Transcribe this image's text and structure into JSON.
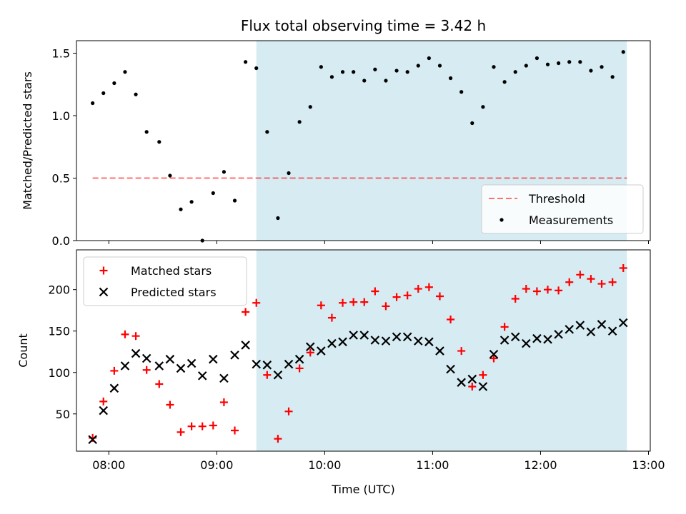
{
  "chart_data": [
    {
      "type": "scatter",
      "title": "Flux total observing time = 3.42 h",
      "xlabel": "",
      "ylabel": "Matched/Predicted stars",
      "x_type": "time",
      "xlim": [
        "07:42",
        "13:01"
      ],
      "ylim": [
        0,
        1.6
      ],
      "yticks": [
        0.0,
        0.5,
        1.0,
        1.5
      ],
      "ytick_labels": [
        "0.0",
        "0.5",
        "1.0",
        "1.5"
      ],
      "xticks": [
        "08:00",
        "09:00",
        "10:00",
        "11:00",
        "12:00",
        "13:00"
      ],
      "shaded_region": {
        "start": "09:22",
        "end": "12:48",
        "color": "#add8e6"
      },
      "legend_position": "lower-right",
      "lines": [
        {
          "name": "Threshold",
          "color": "#ff0000",
          "style": "dashed",
          "x": [
            "07:51",
            "12:48"
          ],
          "y": [
            0.5,
            0.5
          ]
        }
      ],
      "series": [
        {
          "name": "Measurements",
          "color": "#000000",
          "marker": "dot",
          "x": [
            "07:51",
            "07:57",
            "08:03",
            "08:09",
            "08:15",
            "08:21",
            "08:28",
            "08:34",
            "08:40",
            "08:46",
            "08:52",
            "08:58",
            "09:04",
            "09:10",
            "09:16",
            "09:22",
            "09:28",
            "09:34",
            "09:40",
            "09:46",
            "09:52",
            "09:58",
            "10:04",
            "10:10",
            "10:16",
            "10:22",
            "10:28",
            "10:34",
            "10:40",
            "10:46",
            "10:52",
            "10:58",
            "11:04",
            "11:10",
            "11:16",
            "11:22",
            "11:28",
            "11:34",
            "11:40",
            "11:46",
            "11:52",
            "11:58",
            "12:04",
            "12:10",
            "12:16",
            "12:22",
            "12:28",
            "12:34",
            "12:40",
            "12:46"
          ],
          "y": [
            1.1,
            1.18,
            1.26,
            1.35,
            1.17,
            0.87,
            0.79,
            0.52,
            0.25,
            0.31,
            0.0,
            0.38,
            0.55,
            0.32,
            1.43,
            1.38,
            0.87,
            0.18,
            0.54,
            0.95,
            1.07,
            1.39,
            1.31,
            1.35,
            1.35,
            1.28,
            1.37,
            1.28,
            1.36,
            1.35,
            1.4,
            1.46,
            1.4,
            1.3,
            1.19,
            0.94,
            1.07,
            1.39,
            1.27,
            1.35,
            1.4,
            1.46,
            1.41,
            1.42,
            1.43,
            1.43,
            1.36,
            1.39,
            1.31,
            1.51
          ]
        }
      ]
    },
    {
      "type": "scatter",
      "title": "",
      "xlabel": "Time (UTC)",
      "ylabel": "Count",
      "x_type": "time",
      "xlim": [
        "07:42",
        "13:01"
      ],
      "ylim": [
        5,
        248
      ],
      "yticks": [
        50,
        100,
        150,
        200
      ],
      "xticks": [
        "08:00",
        "09:00",
        "10:00",
        "11:00",
        "12:00",
        "13:00"
      ],
      "shaded_region": {
        "start": "09:22",
        "end": "12:48",
        "color": "#add8e6"
      },
      "legend_position": "upper-left",
      "series": [
        {
          "name": "Matched stars",
          "color": "#ff0000",
          "marker": "plus",
          "x": [
            "07:51",
            "07:57",
            "08:03",
            "08:09",
            "08:15",
            "08:21",
            "08:28",
            "08:34",
            "08:40",
            "08:46",
            "08:52",
            "08:58",
            "09:04",
            "09:10",
            "09:16",
            "09:22",
            "09:28",
            "09:34",
            "09:40",
            "09:46",
            "09:52",
            "09:58",
            "10:04",
            "10:10",
            "10:16",
            "10:22",
            "10:28",
            "10:34",
            "10:40",
            "10:46",
            "10:52",
            "10:58",
            "11:04",
            "11:10",
            "11:16",
            "11:22",
            "11:28",
            "11:34",
            "11:40",
            "11:46",
            "11:52",
            "11:58",
            "12:04",
            "12:10",
            "12:16",
            "12:22",
            "12:28",
            "12:34",
            "12:40",
            "12:46"
          ],
          "y": [
            21,
            65,
            102,
            146,
            144,
            103,
            86,
            61,
            28,
            35,
            35,
            36,
            64,
            30,
            173,
            184,
            97,
            20,
            53,
            105,
            124,
            181,
            166,
            184,
            185,
            185,
            198,
            180,
            191,
            193,
            201,
            203,
            192,
            164,
            126,
            83,
            97,
            117,
            155,
            189,
            201,
            198,
            200,
            199,
            209,
            218,
            213,
            207,
            209,
            226
          ]
        },
        {
          "name": "Predicted stars",
          "color": "#000000",
          "marker": "x",
          "x": [
            "07:51",
            "07:57",
            "08:03",
            "08:09",
            "08:15",
            "08:21",
            "08:28",
            "08:34",
            "08:40",
            "08:46",
            "08:52",
            "08:58",
            "09:04",
            "09:10",
            "09:16",
            "09:22",
            "09:28",
            "09:34",
            "09:40",
            "09:46",
            "09:52",
            "09:58",
            "10:04",
            "10:10",
            "10:16",
            "10:22",
            "10:28",
            "10:34",
            "10:40",
            "10:46",
            "10:52",
            "10:58",
            "11:04",
            "11:10",
            "11:16",
            "11:22",
            "11:28",
            "11:34",
            "11:40",
            "11:46",
            "11:52",
            "11:58",
            "12:04",
            "12:10",
            "12:16",
            "12:22",
            "12:28",
            "12:34",
            "12:40",
            "12:46"
          ],
          "y": [
            19,
            54,
            81,
            108,
            123,
            117,
            108,
            116,
            105,
            111,
            96,
            116,
            93,
            121,
            133,
            110,
            109,
            97,
            110,
            116,
            131,
            126,
            135,
            137,
            145,
            145,
            139,
            138,
            143,
            143,
            138,
            137,
            126,
            104,
            88,
            92,
            83,
            122,
            139,
            143,
            135,
            141,
            140,
            146,
            152,
            157,
            149,
            158,
            150,
            160
          ]
        }
      ]
    }
  ]
}
